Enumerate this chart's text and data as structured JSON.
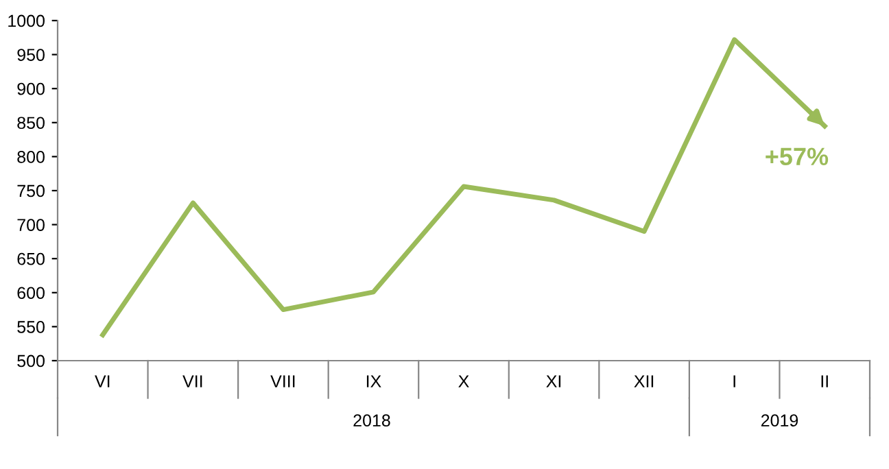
{
  "chart_data": {
    "type": "line",
    "categories": [
      "VI",
      "VII",
      "VIII",
      "IX",
      "X",
      "XI",
      "XII",
      "I",
      "II"
    ],
    "series": [
      {
        "color": "#9bbb59",
        "values": [
          538,
          732,
          575,
          601,
          756,
          736,
          690,
          972,
          845
        ]
      }
    ],
    "ylim": [
      500,
      1000
    ],
    "yticks": [
      500,
      550,
      600,
      650,
      700,
      750,
      800,
      850,
      900,
      950,
      1000
    ],
    "annotations": [
      "+57%",
      "2018",
      "2019"
    ],
    "grid": false,
    "legend": false,
    "marker": "none",
    "line_style": "solid"
  }
}
